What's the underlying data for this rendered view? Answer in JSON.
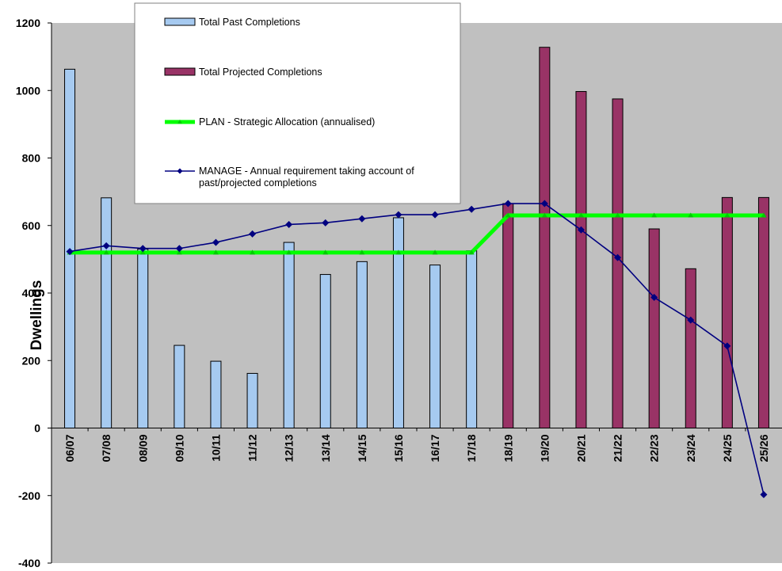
{
  "chart_data": {
    "type": "bar",
    "ylabel": "Dwellings",
    "xlabel": "",
    "ylim": [
      -400,
      1200
    ],
    "yticks": [
      -400,
      -200,
      0,
      200,
      400,
      600,
      800,
      1000,
      1200
    ],
    "grid": false,
    "legend_position": "top-center",
    "background_color": "#c0c0c0",
    "categories": [
      "06/07",
      "07/08",
      "08/09",
      "09/10",
      "10/11",
      "11/12",
      "12/13",
      "13/14",
      "14/15",
      "15/16",
      "16/17",
      "17/18",
      "18/19",
      "19/20",
      "20/21",
      "21/22",
      "22/23",
      "23/24",
      "24/25",
      "25/26"
    ],
    "series": [
      {
        "name": "Total Past Completions",
        "kind": "bar",
        "color": "#a6caf0",
        "values": [
          1063,
          682,
          530,
          245,
          198,
          162,
          550,
          455,
          493,
          623,
          483,
          525,
          null,
          null,
          null,
          null,
          null,
          null,
          null,
          null
        ]
      },
      {
        "name": "Total Projected Completions",
        "kind": "bar",
        "color": "#993366",
        "values": [
          null,
          null,
          null,
          null,
          null,
          null,
          null,
          null,
          null,
          null,
          null,
          null,
          665,
          1128,
          997,
          975,
          590,
          472,
          683,
          683
        ]
      },
      {
        "name": "PLAN - Strategic Allocation (annualised)",
        "kind": "line",
        "color": "#00ff00",
        "values": [
          520,
          520,
          520,
          520,
          520,
          520,
          520,
          520,
          520,
          520,
          520,
          520,
          630,
          630,
          630,
          630,
          630,
          630,
          630,
          630
        ]
      },
      {
        "name": "MANAGE - Annual requirement taking account of past/projected completions",
        "kind": "line",
        "color": "#000080",
        "values": [
          523,
          540,
          532,
          532,
          550,
          575,
          603,
          608,
          620,
          632,
          632,
          648,
          665,
          665,
          587,
          505,
          387,
          320,
          243,
          -197
        ]
      }
    ]
  }
}
